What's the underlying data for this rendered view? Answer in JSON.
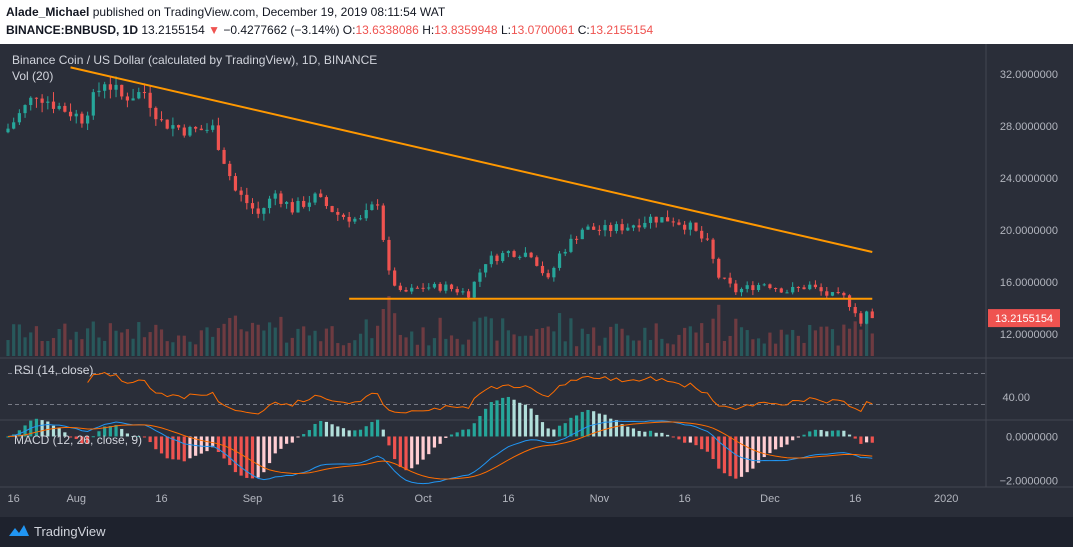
{
  "header": {
    "author": "Alade_Michael",
    "published": "published on TradingView.com, December 19, 2019 08:11:54 WAT",
    "symbol": "BINANCE:BNBUSD, 1D",
    "last": "13.2155154",
    "arrow": "▼",
    "change": "−0.4277662 (−3.14%)",
    "o_label": "O:",
    "o_value": "13.6338086",
    "h_label": "H:",
    "h_value": "13.8359948",
    "l_label": "L:",
    "l_value": "13.0700061",
    "c_label": "C:",
    "c_value": "13.2155154"
  },
  "chart_data": {
    "type": "candlestick",
    "title": "Binance Coin / US Dollar (calculated by TradingView), 1D, BINANCE",
    "volume_label": "Vol (20)",
    "price_axis": {
      "ylim": [
        10.3,
        34.3
      ],
      "ticks": [
        12,
        16,
        20,
        24,
        28,
        32
      ],
      "tick_labels": [
        "12.0000000",
        "16.0000000",
        "20.0000000",
        "24.0000000",
        "28.0000000",
        "32.0000000"
      ]
    },
    "last_price_label": "13.2155154",
    "x_axis": {
      "start_date": "2019-07-20",
      "end_date": "2020-01-08",
      "ticks": [
        {
          "date": "2019-07-21",
          "label": "16"
        },
        {
          "date": "2019-08-01",
          "label": "Aug"
        },
        {
          "date": "2019-08-16",
          "label": "16"
        },
        {
          "date": "2019-09-01",
          "label": "Sep"
        },
        {
          "date": "2019-09-16",
          "label": "16"
        },
        {
          "date": "2019-10-01",
          "label": "Oct"
        },
        {
          "date": "2019-10-16",
          "label": "16"
        },
        {
          "date": "2019-11-01",
          "label": "Nov"
        },
        {
          "date": "2019-11-16",
          "label": "16"
        },
        {
          "date": "2019-12-01",
          "label": "Dec"
        },
        {
          "date": "2019-12-16",
          "label": "16"
        },
        {
          "date": "2020-01-01",
          "label": "2020"
        }
      ]
    },
    "closes": [
      {
        "date": "2019-07-20",
        "close": 27.8
      },
      {
        "date": "2019-07-25",
        "close": 30.5
      },
      {
        "date": "2019-07-28",
        "close": 29.7
      },
      {
        "date": "2019-08-02",
        "close": 28.6
      },
      {
        "date": "2019-08-06",
        "close": 31.5
      },
      {
        "date": "2019-08-09",
        "close": 30.2
      },
      {
        "date": "2019-08-13",
        "close": 30.6
      },
      {
        "date": "2019-08-16",
        "close": 28.3
      },
      {
        "date": "2019-08-21",
        "close": 27.6
      },
      {
        "date": "2019-08-25",
        "close": 27.8
      },
      {
        "date": "2019-08-29",
        "close": 23.0
      },
      {
        "date": "2019-09-02",
        "close": 21.2
      },
      {
        "date": "2019-09-05",
        "close": 22.8
      },
      {
        "date": "2019-09-08",
        "close": 21.6
      },
      {
        "date": "2019-09-12",
        "close": 22.5
      },
      {
        "date": "2019-09-16",
        "close": 21.2
      },
      {
        "date": "2019-09-20",
        "close": 20.7
      },
      {
        "date": "2019-09-23",
        "close": 22.2
      },
      {
        "date": "2019-09-25",
        "close": 16.6
      },
      {
        "date": "2019-09-27",
        "close": 15.1
      },
      {
        "date": "2019-10-01",
        "close": 15.6
      },
      {
        "date": "2019-10-05",
        "close": 15.6
      },
      {
        "date": "2019-10-09",
        "close": 15.1
      },
      {
        "date": "2019-10-12",
        "close": 17.6
      },
      {
        "date": "2019-10-16",
        "close": 18.3
      },
      {
        "date": "2019-10-20",
        "close": 18.2
      },
      {
        "date": "2019-10-23",
        "close": 16.1
      },
      {
        "date": "2019-10-25",
        "close": 18.1
      },
      {
        "date": "2019-10-29",
        "close": 20.1
      },
      {
        "date": "2019-11-02",
        "close": 20.0
      },
      {
        "date": "2019-11-06",
        "close": 20.3
      },
      {
        "date": "2019-11-10",
        "close": 20.9
      },
      {
        "date": "2019-11-14",
        "close": 20.8
      },
      {
        "date": "2019-11-17",
        "close": 20.2
      },
      {
        "date": "2019-11-20",
        "close": 18.9
      },
      {
        "date": "2019-11-22",
        "close": 16.4
      },
      {
        "date": "2019-11-25",
        "close": 15.3
      },
      {
        "date": "2019-11-30",
        "close": 15.9
      },
      {
        "date": "2019-12-04",
        "close": 15.3
      },
      {
        "date": "2019-12-08",
        "close": 15.7
      },
      {
        "date": "2019-12-11",
        "close": 15.0
      },
      {
        "date": "2019-12-14",
        "close": 14.8
      },
      {
        "date": "2019-12-16",
        "close": 13.8
      },
      {
        "date": "2019-12-17",
        "close": 12.8
      },
      {
        "date": "2019-12-18",
        "close": 13.6
      },
      {
        "date": "2019-12-19",
        "close": 13.2155154
      }
    ],
    "trendlines": [
      {
        "name": "descending resistance",
        "color": "#ff9800",
        "from": {
          "date": "2019-07-31",
          "price": 32.5
        },
        "to": {
          "date": "2019-12-19",
          "price": 18.3
        }
      },
      {
        "name": "horizontal support",
        "color": "#ff9800",
        "from": {
          "date": "2019-09-18",
          "price": 14.7
        },
        "to": {
          "date": "2019-12-19",
          "price": 14.7
        }
      }
    ],
    "rsi": {
      "label": "RSI (14, close)",
      "tick_labels": [
        "40.00"
      ],
      "bands": [
        70,
        30
      ],
      "ylim": [
        10,
        90
      ]
    },
    "macd": {
      "label": "MACD (12, 26, close, 9)",
      "tick_labels": [
        "0.0000000",
        "−2.0000000"
      ],
      "ticks": [
        0,
        -2
      ],
      "ylim": [
        -2.3,
        0.75
      ]
    }
  },
  "colors": {
    "background": "#2a2e39",
    "up": "#26a69a",
    "down": "#ef5350",
    "trendline": "#ff9800",
    "rsi": "#ff6d00",
    "macd": "#2196f3",
    "signal": "#ff6d00"
  },
  "footer": {
    "brand": "TradingView",
    "logo_icon": "tradingview-logo-icon"
  }
}
